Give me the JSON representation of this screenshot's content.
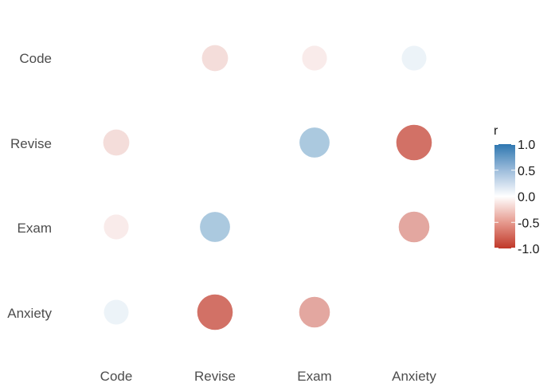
{
  "chart_data": {
    "type": "scatter",
    "variables": [
      "Code",
      "Revise",
      "Exam",
      "Anxiety"
    ],
    "x_tick_labels": [
      "Code",
      "Revise",
      "Exam",
      "Anxiety"
    ],
    "y_tick_labels": [
      "Code",
      "Revise",
      "Exam",
      "Anxiety"
    ],
    "correlations": [
      {
        "x": "Revise",
        "y": "Code",
        "r": -0.17
      },
      {
        "x": "Exam",
        "y": "Code",
        "r": -0.1
      },
      {
        "x": "Anxiety",
        "y": "Code",
        "r": 0.09
      },
      {
        "x": "Code",
        "y": "Revise",
        "r": -0.17
      },
      {
        "x": "Exam",
        "y": "Revise",
        "r": 0.4
      },
      {
        "x": "Anxiety",
        "y": "Revise",
        "r": -0.71
      },
      {
        "x": "Code",
        "y": "Exam",
        "r": -0.1
      },
      {
        "x": "Revise",
        "y": "Exam",
        "r": 0.4
      },
      {
        "x": "Anxiety",
        "y": "Exam",
        "r": -0.44
      },
      {
        "x": "Code",
        "y": "Anxiety",
        "r": 0.09
      },
      {
        "x": "Revise",
        "y": "Anxiety",
        "r": -0.71
      },
      {
        "x": "Exam",
        "y": "Anxiety",
        "r": -0.44
      }
    ],
    "legend": {
      "title": "r",
      "ticks": [
        1.0,
        0.5,
        0.0,
        -0.5,
        -1.0
      ],
      "tick_labels": [
        "1.0",
        "0.5",
        "0.0",
        "-0.5",
        "-1.0"
      ],
      "placement": "right"
    },
    "color_scale": {
      "low": "#c03728",
      "mid": "#ffffff",
      "high": "#2e77b0",
      "limits": [
        -1.0,
        1.0
      ]
    },
    "grid": false
  }
}
